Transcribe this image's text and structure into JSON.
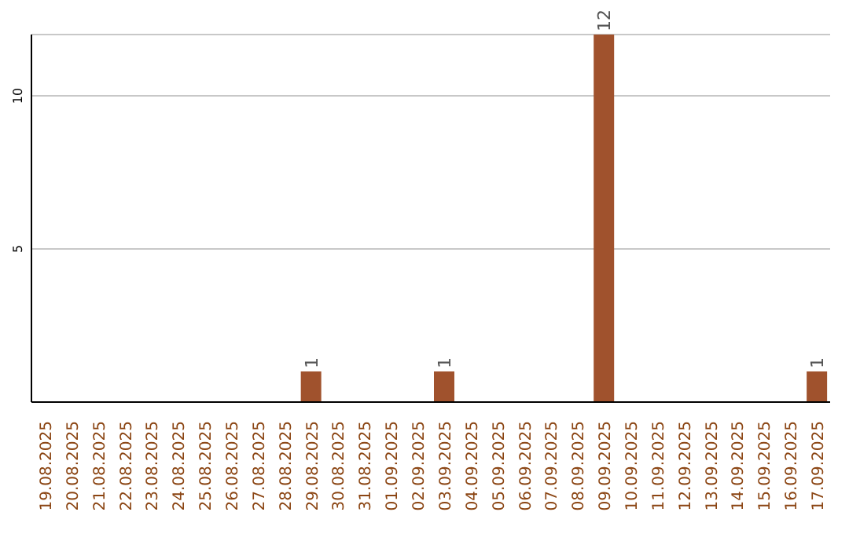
{
  "chart_data": {
    "type": "bar",
    "categories": [
      "19.08.2025",
      "20.08.2025",
      "21.08.2025",
      "22.08.2025",
      "23.08.2025",
      "24.08.2025",
      "25.08.2025",
      "26.08.2025",
      "27.08.2025",
      "28.08.2025",
      "29.08.2025",
      "30.08.2025",
      "31.08.2025",
      "01.09.2025",
      "02.09.2025",
      "03.09.2025",
      "04.09.2025",
      "05.09.2025",
      "06.09.2025",
      "07.09.2025",
      "08.09.2025",
      "09.09.2025",
      "10.09.2025",
      "11.09.2025",
      "12.09.2025",
      "13.09.2025",
      "14.09.2025",
      "15.09.2025",
      "16.09.2025",
      "17.09.2025"
    ],
    "values": [
      0,
      0,
      0,
      0,
      0,
      0,
      0,
      0,
      0,
      0,
      1,
      0,
      0,
      0,
      0,
      1,
      0,
      0,
      0,
      0,
      0,
      12,
      0,
      0,
      0,
      0,
      0,
      0,
      0,
      1
    ],
    "value_labels": [
      null,
      null,
      null,
      null,
      null,
      null,
      null,
      null,
      null,
      null,
      "1",
      null,
      null,
      null,
      null,
      "1",
      null,
      null,
      null,
      null,
      null,
      "12",
      null,
      null,
      null,
      null,
      null,
      null,
      null,
      "1"
    ],
    "color": "#a0522d",
    "ylim": [
      0,
      12
    ],
    "yticks": [
      5,
      10
    ],
    "grid": "y"
  }
}
